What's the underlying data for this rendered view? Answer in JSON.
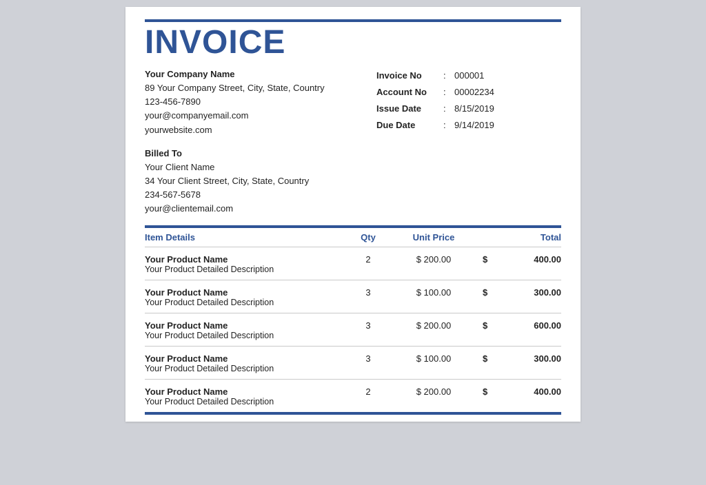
{
  "colors": {
    "page_background": "#cfd1d7",
    "paper_background": "#ffffff",
    "accent": "#2f5496",
    "text": "#232323",
    "row_border": "#c9c9c9"
  },
  "title": "INVOICE",
  "company": {
    "name": "Your Company Name",
    "address": "89 Your Company Street, City, State, Country",
    "phone": "123-456-7890",
    "email": "your@companyemail.com",
    "website": "yourwebsite.com"
  },
  "meta": {
    "invoice_no_label": "Invoice No",
    "invoice_no": "000001",
    "account_no_label": "Account No",
    "account_no": "00002234",
    "issue_date_label": "Issue Date",
    "issue_date": "8/15/2019",
    "due_date_label": "Due Date",
    "due_date": "9/14/2019"
  },
  "billed_to": {
    "heading": "Billed To",
    "name": "Your Client Name",
    "address": "34 Your Client Street, City, State, Country",
    "phone": "234-567-5678",
    "email": "your@clientemail.com"
  },
  "table": {
    "headers": {
      "item_details": "Item Details",
      "qty": "Qty",
      "unit_price": "Unit Price",
      "total": "Total"
    },
    "currency": "$",
    "rows": [
      {
        "name": "Your Product Name",
        "description": "Your Product Detailed Description",
        "qty": "2",
        "unit_price": "$ 200.00",
        "total": "400.00"
      },
      {
        "name": "Your Product Name",
        "description": "Your Product Detailed Description",
        "qty": "3",
        "unit_price": "$ 100.00",
        "total": "300.00"
      },
      {
        "name": "Your Product Name",
        "description": "Your Product Detailed Description",
        "qty": "3",
        "unit_price": "$ 200.00",
        "total": "600.00"
      },
      {
        "name": "Your Product Name",
        "description": "Your Product Detailed Description",
        "qty": "3",
        "unit_price": "$ 100.00",
        "total": "300.00"
      },
      {
        "name": "Your Product Name",
        "description": "Your Product Detailed Description",
        "qty": "2",
        "unit_price": "$ 200.00",
        "total": "400.00"
      }
    ]
  }
}
